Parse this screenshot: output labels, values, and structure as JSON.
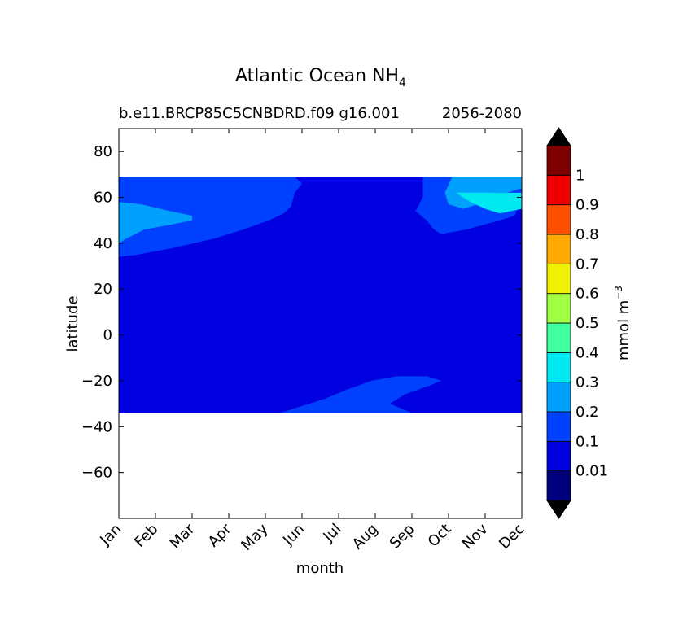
{
  "chart_data": {
    "type": "heatmap",
    "title": "Atlantic Ocean NH",
    "title_subscript": "4",
    "subtitle_left": "b.e11.BRCP85C5CNBDRD.f09 g16.001",
    "subtitle_right": "2056-2080",
    "xlabel": "month",
    "ylabel": "latitude",
    "x_categories": [
      "Jan",
      "Feb",
      "Mar",
      "Apr",
      "May",
      "Jun",
      "Jul",
      "Aug",
      "Sep",
      "Oct",
      "Nov",
      "Dec"
    ],
    "ylim": [
      -80,
      90
    ],
    "yticks": [
      80,
      60,
      40,
      20,
      0,
      -20,
      -40,
      -60
    ],
    "ytick_labels": [
      "80",
      "60",
      "40",
      "20",
      "0",
      "−20",
      "−40",
      "−60"
    ],
    "data_lat_range": [
      -34,
      69
    ],
    "grid": false,
    "colorbar": {
      "label": "mmol m",
      "label_superscript": "−3",
      "tick_labels": [
        "1",
        "0.9",
        "0.8",
        "0.7",
        "0.6",
        "0.5",
        "0.4",
        "0.3",
        "0.2",
        "0.1",
        "0.01"
      ],
      "colors": [
        "#00007f",
        "#0000e0",
        "#0040ff",
        "#00a0ff",
        "#00e8f0",
        "#40ffa0",
        "#a0ff40",
        "#f0f000",
        "#ffaa00",
        "#ff5000",
        "#ee0000",
        "#7f0000"
      ],
      "extend_color": "#000000"
    },
    "regions": [
      {
        "name": "base",
        "level": 0.1,
        "color": "#0000e0"
      },
      {
        "name": "north-band",
        "level": 0.2,
        "color": "#0040ff"
      },
      {
        "name": "west-north",
        "level": 0.3,
        "color": "#00a0ff"
      },
      {
        "name": "east-north",
        "level": 0.3,
        "color": "#00a0ff"
      },
      {
        "name": "east-north-peak",
        "level": 0.4,
        "color": "#00e8f0"
      },
      {
        "name": "south-band",
        "level": 0.2,
        "color": "#0040ff"
      }
    ]
  }
}
